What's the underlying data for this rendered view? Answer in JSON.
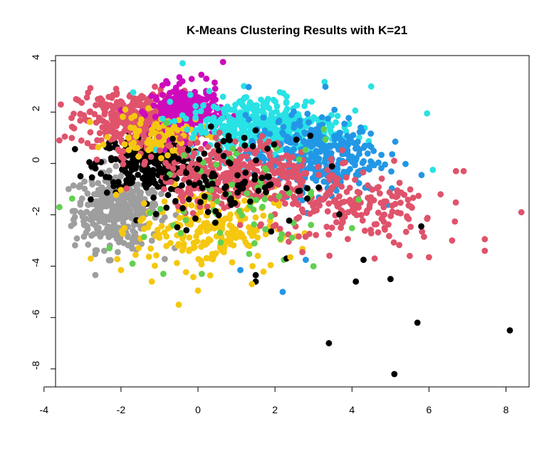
{
  "chart_data": {
    "type": "scatter",
    "title": "K-Means Clustering Results with K=21",
    "xlabel": "",
    "ylabel": "",
    "xlim": [
      -3.7,
      8.6
    ],
    "ylim": [
      -8.7,
      4.2
    ],
    "xticks": [
      -4,
      -2,
      0,
      2,
      4,
      6,
      8
    ],
    "yticks": [
      -8,
      -6,
      -4,
      -2,
      0,
      2,
      4
    ],
    "grid": false,
    "legend": "none",
    "colors": {
      "black": "#000000",
      "red": "#DF536B",
      "green": "#61D04F",
      "blue": "#2297E6",
      "cyan": "#28E2E5",
      "magenta": "#CD0BBC",
      "yellow": "#F5C710",
      "gray": "#9E9E9E"
    },
    "clouds": [
      {
        "color": "gray",
        "n": 380,
        "cx": -2.1,
        "cy": -1.8,
        "sx": 0.55,
        "sy": 0.75
      },
      {
        "color": "black",
        "n": 300,
        "cx": -1.2,
        "cy": 0.0,
        "sx": 0.7,
        "sy": 0.55
      },
      {
        "color": "red",
        "n": 380,
        "cx": -1.6,
        "cy": 1.7,
        "sx": 0.75,
        "sy": 0.55
      },
      {
        "color": "magenta",
        "n": 280,
        "cx": -0.3,
        "cy": 2.0,
        "sx": 0.45,
        "sy": 0.5
      },
      {
        "color": "yellow",
        "n": 90,
        "cx": -1.0,
        "cy": 1.1,
        "sx": 0.6,
        "sy": 0.4
      },
      {
        "color": "yellow",
        "n": 230,
        "cx": 0.2,
        "cy": -2.5,
        "sx": 0.9,
        "sy": 0.8
      },
      {
        "color": "cyan",
        "n": 420,
        "cx": 1.7,
        "cy": 1.4,
        "sx": 1.0,
        "sy": 0.65
      },
      {
        "color": "blue",
        "n": 340,
        "cx": 3.0,
        "cy": 0.3,
        "sx": 0.85,
        "sy": 0.75
      },
      {
        "color": "red",
        "n": 350,
        "cx": 1.0,
        "cy": -0.4,
        "sx": 1.0,
        "sy": 0.65
      },
      {
        "color": "red",
        "n": 180,
        "cx": 4.2,
        "cy": -1.8,
        "sx": 1.1,
        "sy": 0.7
      },
      {
        "color": "green",
        "n": 70,
        "cx": 1.0,
        "cy": -1.0,
        "sx": 1.7,
        "sy": 1.2
      },
      {
        "color": "black",
        "n": 90,
        "cx": 0.8,
        "cy": -0.6,
        "sx": 0.9,
        "sy": 0.8
      }
    ],
    "points": [
      {
        "x": 5.1,
        "y": -8.2,
        "color": "black"
      },
      {
        "x": 3.4,
        "y": -7.0,
        "color": "black"
      },
      {
        "x": 8.1,
        "y": -6.5,
        "color": "black"
      },
      {
        "x": 5.7,
        "y": -6.2,
        "color": "black"
      },
      {
        "x": 4.1,
        "y": -4.6,
        "color": "black"
      },
      {
        "x": 5.0,
        "y": -4.5,
        "color": "black"
      },
      {
        "x": 1.5,
        "y": -4.6,
        "color": "black"
      },
      {
        "x": 1.5,
        "y": -4.35,
        "color": "black"
      },
      {
        "x": 4.3,
        "y": -3.75,
        "color": "black"
      },
      {
        "x": 2.3,
        "y": -3.7,
        "color": "black"
      },
      {
        "x": 5.8,
        "y": -2.45,
        "color": "black"
      },
      {
        "x": 1.9,
        "y": -2.65,
        "color": "black"
      },
      {
        "x": -0.3,
        "y": -2.6,
        "color": "black"
      },
      {
        "x": 8.4,
        "y": -1.9,
        "color": "red"
      },
      {
        "x": 7.45,
        "y": -3.4,
        "color": "red"
      },
      {
        "x": 7.45,
        "y": -2.95,
        "color": "red"
      },
      {
        "x": 6.7,
        "y": -0.3,
        "color": "red"
      },
      {
        "x": 6.0,
        "y": -3.65,
        "color": "red"
      },
      {
        "x": 6.6,
        "y": -3.0,
        "color": "red"
      },
      {
        "x": 6.3,
        "y": -1.2,
        "color": "red"
      },
      {
        "x": 5.5,
        "y": -3.6,
        "color": "red"
      },
      {
        "x": 6.9,
        "y": -0.3,
        "color": "red"
      },
      {
        "x": -0.5,
        "y": -5.5,
        "color": "yellow"
      },
      {
        "x": 0.0,
        "y": -4.95,
        "color": "yellow"
      },
      {
        "x": 1.4,
        "y": -4.7,
        "color": "yellow"
      },
      {
        "x": -2.0,
        "y": -4.15,
        "color": "yellow"
      },
      {
        "x": 2.4,
        "y": -3.65,
        "color": "yellow"
      },
      {
        "x": -1.2,
        "y": -4.6,
        "color": "yellow"
      },
      {
        "x": 2.2,
        "y": -5.0,
        "color": "blue"
      },
      {
        "x": 1.1,
        "y": -4.15,
        "color": "blue"
      },
      {
        "x": 2.8,
        "y": -3.75,
        "color": "blue"
      },
      {
        "x": 3.0,
        "y": -4.0,
        "color": "green"
      },
      {
        "x": 0.1,
        "y": -4.3,
        "color": "green"
      },
      {
        "x": -0.9,
        "y": -4.3,
        "color": "green"
      },
      {
        "x": -1.7,
        "y": -3.9,
        "color": "green"
      },
      {
        "x": -3.6,
        "y": -1.7,
        "color": "green"
      },
      {
        "x": -2.3,
        "y": -3.3,
        "color": "green"
      },
      {
        "x": -3.6,
        "y": 0.9,
        "color": "red"
      },
      {
        "x": -0.4,
        "y": 3.9,
        "color": "cyan"
      },
      {
        "x": 0.65,
        "y": 3.95,
        "color": "magenta"
      },
      {
        "x": 5.95,
        "y": 1.95,
        "color": "cyan"
      },
      {
        "x": 6.1,
        "y": -0.25,
        "color": "cyan"
      },
      {
        "x": 4.5,
        "y": 3.0,
        "color": "cyan"
      }
    ]
  }
}
